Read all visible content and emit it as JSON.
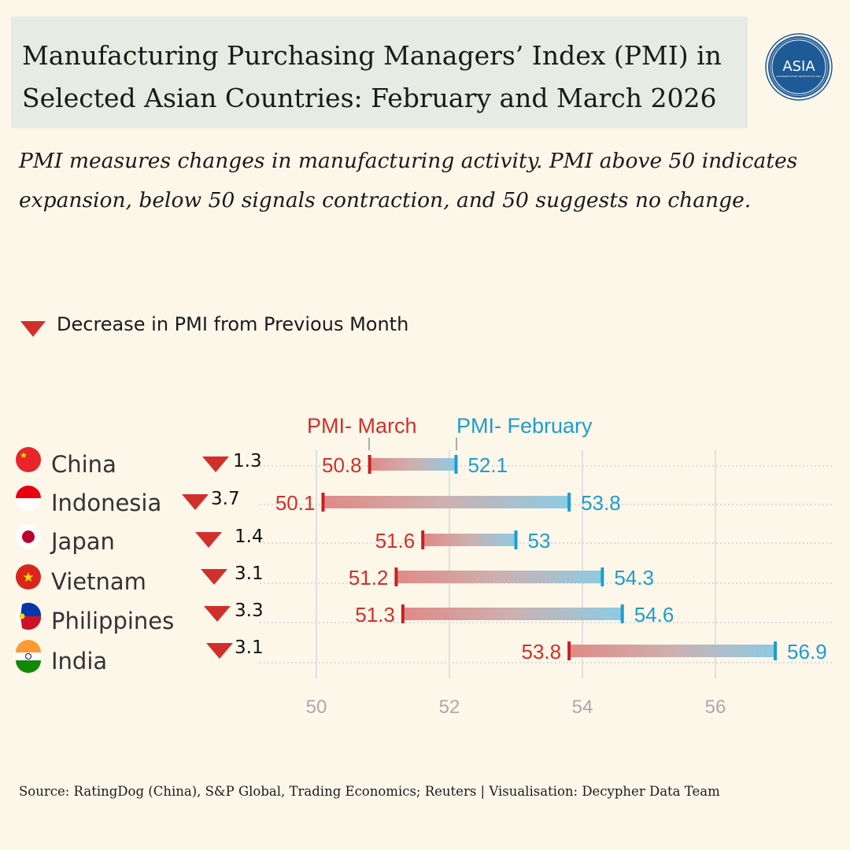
{
  "title": "Manufacturing Purchasing Managers’ Index (PMI) in Selected Asian Countries: February and March 2026",
  "logo": {
    "text": "ASIA",
    "subtext": "ADVANCED STUDY INSTITUTE OF ASIA"
  },
  "subtitle": "PMI measures changes in manufacturing activity. PMI above 50 indicates expansion, below 50 signals contraction, and 50 suggests no change.",
  "legend": {
    "label": "Decrease in PMI from Previous Month",
    "icon": "down-triangle-icon"
  },
  "source": "Source: RatingDog (China), S&P Global, Trading Economics; Reuters | Visualisation: Decypher Data Team",
  "colors": {
    "march": "#d1302a",
    "february": "#1f9ccc",
    "decrease": "#d1302a"
  },
  "chart_data": {
    "type": "dumbbell",
    "series_labels": {
      "march": "PMI- March",
      "february": "PMI- February"
    },
    "categories": [
      "China",
      "Indonesia",
      "Japan",
      "Vietnam",
      "Philippines",
      "India"
    ],
    "march": [
      50.8,
      50.1,
      51.6,
      51.2,
      51.3,
      53.8
    ],
    "february": [
      52.1,
      53.8,
      53,
      54.3,
      54.6,
      56.9
    ],
    "march_labels": [
      "50.8",
      "50.1",
      "51.6",
      "51.2",
      "51.3",
      "53.8"
    ],
    "february_labels": [
      "52.1",
      "53.8",
      "53",
      "54.3",
      "54.6",
      "56.9"
    ],
    "decrease": [
      "1.3",
      "3.7",
      "1.4",
      "3.1",
      "3.3",
      "3.1"
    ],
    "xticks": [
      50,
      52,
      54,
      56
    ],
    "xlim": [
      49.6,
      57.7
    ],
    "grid": true
  }
}
